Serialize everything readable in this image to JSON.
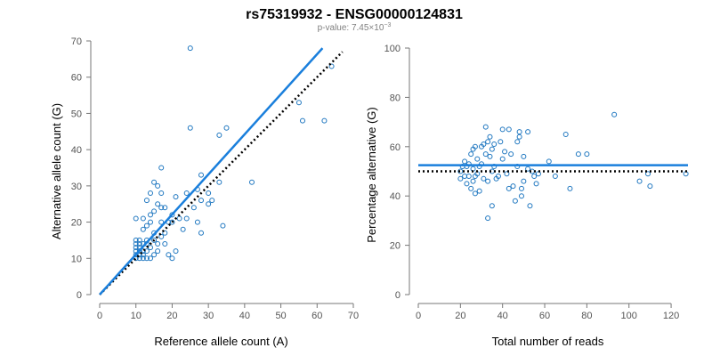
{
  "figure": {
    "title": "rs75319932 - ENSG00000124831",
    "subtitle_prefix": "p-value: 7.45×10",
    "subtitle_exp": "−3",
    "colors": {
      "points": "#1f77c0",
      "fit": "#1a7fdc",
      "reference": "#000000",
      "axis": "#777777"
    }
  },
  "chart_data": [
    {
      "type": "scatter",
      "xlabel": "Reference allele count (A)",
      "ylabel": "Alternative allele count (G)",
      "xlim": [
        0,
        70
      ],
      "ylim": [
        0,
        70
      ],
      "xticks": [
        0,
        10,
        20,
        30,
        40,
        50,
        60,
        70
      ],
      "yticks": [
        0,
        10,
        20,
        30,
        40,
        50,
        60,
        70
      ],
      "grid": false,
      "points": [
        [
          10,
          10
        ],
        [
          10,
          11
        ],
        [
          10,
          12
        ],
        [
          10,
          13
        ],
        [
          10,
          14
        ],
        [
          10,
          15
        ],
        [
          10,
          21
        ],
        [
          11,
          10
        ],
        [
          11,
          11
        ],
        [
          11,
          12
        ],
        [
          11,
          13
        ],
        [
          11,
          14
        ],
        [
          11,
          15
        ],
        [
          12,
          10
        ],
        [
          12,
          11
        ],
        [
          12,
          12
        ],
        [
          12,
          14
        ],
        [
          12,
          18
        ],
        [
          12,
          21
        ],
        [
          13,
          10
        ],
        [
          13,
          12
        ],
        [
          13,
          14
        ],
        [
          13,
          15
        ],
        [
          13,
          19
        ],
        [
          13,
          26
        ],
        [
          14,
          10
        ],
        [
          14,
          13
        ],
        [
          14,
          20
        ],
        [
          14,
          22
        ],
        [
          14,
          28
        ],
        [
          15,
          11
        ],
        [
          15,
          15
        ],
        [
          15,
          17
        ],
        [
          15,
          23
        ],
        [
          15,
          31
        ],
        [
          16,
          12
        ],
        [
          16,
          14
        ],
        [
          16,
          25
        ],
        [
          16,
          30
        ],
        [
          17,
          16
        ],
        [
          17,
          20
        ],
        [
          17,
          24
        ],
        [
          17,
          28
        ],
        [
          17,
          35
        ],
        [
          18,
          14
        ],
        [
          18,
          17
        ],
        [
          18,
          24
        ],
        [
          19,
          11
        ],
        [
          19,
          20
        ],
        [
          20,
          10
        ],
        [
          20,
          20
        ],
        [
          20,
          22
        ],
        [
          21,
          12
        ],
        [
          21,
          27
        ],
        [
          22,
          21
        ],
        [
          23,
          18
        ],
        [
          24,
          21
        ],
        [
          24,
          28
        ],
        [
          25,
          46
        ],
        [
          25,
          68
        ],
        [
          26,
          24
        ],
        [
          27,
          20
        ],
        [
          27,
          29
        ],
        [
          28,
          17
        ],
        [
          28,
          26
        ],
        [
          28,
          33
        ],
        [
          30,
          25
        ],
        [
          30,
          28
        ],
        [
          31,
          26
        ],
        [
          33,
          31
        ],
        [
          33,
          44
        ],
        [
          34,
          19
        ],
        [
          35,
          46
        ],
        [
          42,
          31
        ],
        [
          55,
          53
        ],
        [
          56,
          48
        ],
        [
          62,
          48
        ],
        [
          64,
          63
        ]
      ],
      "fit_line": {
        "x": [
          0,
          61.5
        ],
        "y": [
          0,
          68
        ]
      },
      "reference_line": {
        "x": [
          0,
          67
        ],
        "y": [
          0,
          67
        ]
      }
    },
    {
      "type": "scatter",
      "xlabel": "Total number of reads",
      "ylabel": "Percentage alternative (G)",
      "xlim": [
        0,
        128
      ],
      "ylim": [
        0,
        100
      ],
      "xticks": [
        0,
        20,
        40,
        60,
        80,
        100,
        120
      ],
      "yticks": [
        0,
        20,
        40,
        60,
        80,
        100
      ],
      "grid": false,
      "points": [
        [
          20,
          50
        ],
        [
          20,
          47
        ],
        [
          21,
          52
        ],
        [
          22,
          54
        ],
        [
          22,
          48
        ],
        [
          23,
          45
        ],
        [
          23,
          52
        ],
        [
          24,
          53
        ],
        [
          24,
          48
        ],
        [
          25,
          57
        ],
        [
          25,
          43
        ],
        [
          26,
          59
        ],
        [
          26,
          51
        ],
        [
          26,
          46
        ],
        [
          27,
          60
        ],
        [
          27,
          48
        ],
        [
          27,
          41
        ],
        [
          28,
          55
        ],
        [
          28,
          49
        ],
        [
          29,
          52
        ],
        [
          29,
          42
        ],
        [
          30,
          60
        ],
        [
          30,
          53
        ],
        [
          31,
          47
        ],
        [
          31,
          61
        ],
        [
          32,
          68
        ],
        [
          32,
          57
        ],
        [
          33,
          62
        ],
        [
          33,
          46
        ],
        [
          33,
          31
        ],
        [
          34,
          64
        ],
        [
          34,
          56
        ],
        [
          35,
          59
        ],
        [
          35,
          50
        ],
        [
          35,
          36
        ],
        [
          36,
          61
        ],
        [
          36,
          52
        ],
        [
          37,
          47
        ],
        [
          38,
          48
        ],
        [
          39,
          62
        ],
        [
          40,
          67
        ],
        [
          40,
          55
        ],
        [
          41,
          58
        ],
        [
          42,
          49
        ],
        [
          43,
          67
        ],
        [
          43,
          43
        ],
        [
          44,
          57
        ],
        [
          45,
          44
        ],
        [
          46,
          38
        ],
        [
          47,
          62
        ],
        [
          47,
          52
        ],
        [
          48,
          66
        ],
        [
          48,
          64
        ],
        [
          49,
          43
        ],
        [
          49,
          40
        ],
        [
          50,
          56
        ],
        [
          50,
          46
        ],
        [
          52,
          66
        ],
        [
          52,
          51
        ],
        [
          53,
          36
        ],
        [
          54,
          50
        ],
        [
          55,
          48
        ],
        [
          56,
          45
        ],
        [
          57,
          49
        ],
        [
          62,
          54
        ],
        [
          65,
          48
        ],
        [
          70,
          65
        ],
        [
          72,
          43
        ],
        [
          76,
          57
        ],
        [
          80,
          57
        ],
        [
          93,
          73
        ],
        [
          105,
          46
        ],
        [
          109,
          49
        ],
        [
          110,
          44
        ],
        [
          127,
          49
        ]
      ],
      "fit_line": {
        "x": [
          0,
          128
        ],
        "y": [
          52.5,
          52.5
        ]
      },
      "reference_line": {
        "x": [
          0,
          128
        ],
        "y": [
          50,
          50
        ]
      }
    }
  ]
}
